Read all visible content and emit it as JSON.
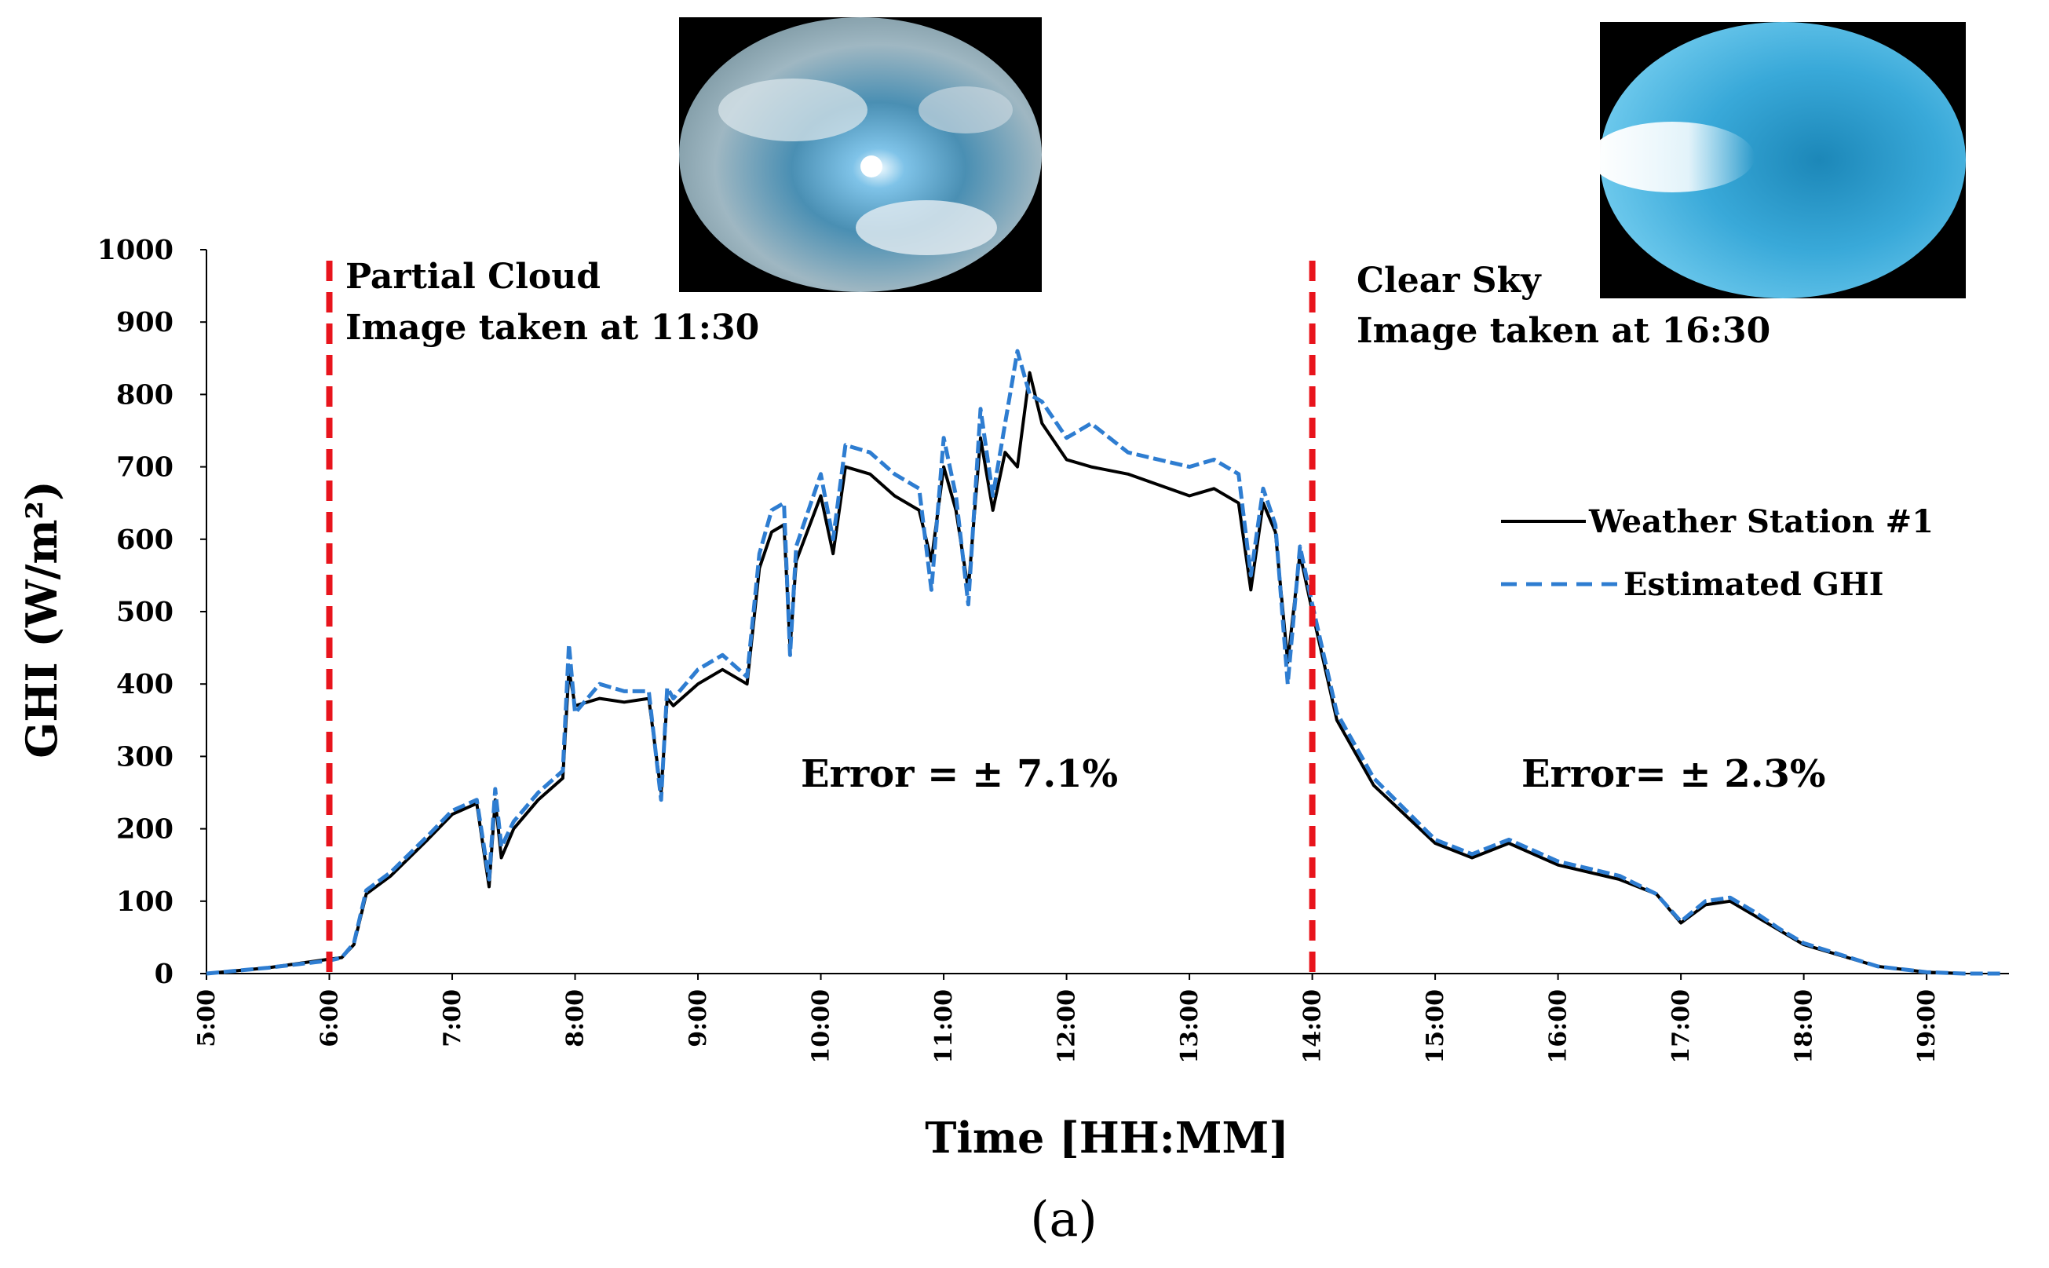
{
  "chart_data": {
    "type": "line",
    "ylabel": "GHI (W/m²)",
    "xlabel": "Time [HH:MM]",
    "caption": "(a)",
    "ylim": [
      0,
      1000
    ],
    "xlim": [
      5.0,
      19.67
    ],
    "y_ticks": [
      "0",
      "100",
      "200",
      "300",
      "400",
      "500",
      "600",
      "700",
      "800",
      "900",
      "1000"
    ],
    "x_ticks": [
      "5:00",
      "6:00",
      "7:00",
      "8:00",
      "9:00",
      "10:00",
      "11:00",
      "12:00",
      "13:00",
      "14:00",
      "15:00",
      "16:00",
      "17:00",
      "18:00",
      "19:00"
    ],
    "grid": false,
    "legend_position": "right",
    "series": [
      {
        "name": "Weather Station #1",
        "color": "#000000",
        "style": "solid",
        "x": [
          5.0,
          5.5,
          6.0,
          6.1,
          6.2,
          6.3,
          6.5,
          6.8,
          7.0,
          7.2,
          7.3,
          7.35,
          7.4,
          7.5,
          7.7,
          7.9,
          7.95,
          8.0,
          8.2,
          8.4,
          8.6,
          8.7,
          8.75,
          8.8,
          9.0,
          9.2,
          9.4,
          9.5,
          9.6,
          9.7,
          9.75,
          9.8,
          10.0,
          10.1,
          10.2,
          10.4,
          10.6,
          10.8,
          10.9,
          11.0,
          11.1,
          11.2,
          11.3,
          11.4,
          11.5,
          11.6,
          11.7,
          11.8,
          12.0,
          12.2,
          12.5,
          13.0,
          13.2,
          13.4,
          13.5,
          13.6,
          13.7,
          13.8,
          13.9,
          14.0,
          14.2,
          14.5,
          15.0,
          15.3,
          15.6,
          16.0,
          16.5,
          16.8,
          17.0,
          17.2,
          17.4,
          17.6,
          17.8,
          18.0,
          18.3,
          18.6,
          19.0,
          19.3
        ],
        "y": [
          0,
          8,
          20,
          22,
          40,
          110,
          135,
          185,
          220,
          235,
          120,
          240,
          160,
          200,
          240,
          270,
          420,
          370,
          380,
          375,
          380,
          250,
          380,
          370,
          400,
          420,
          400,
          560,
          610,
          620,
          450,
          570,
          660,
          580,
          700,
          690,
          660,
          640,
          570,
          700,
          640,
          530,
          740,
          640,
          720,
          700,
          830,
          760,
          710,
          700,
          690,
          660,
          670,
          650,
          530,
          650,
          610,
          430,
          580,
          500,
          350,
          260,
          180,
          160,
          180,
          150,
          130,
          110,
          70,
          95,
          100,
          80,
          60,
          40,
          25,
          10,
          2,
          0
        ]
      },
      {
        "name": "Estimated GHI",
        "color": "#2e7dd1",
        "style": "dashed",
        "x": [
          5.0,
          5.5,
          6.0,
          6.1,
          6.2,
          6.3,
          6.5,
          6.8,
          7.0,
          7.2,
          7.3,
          7.35,
          7.4,
          7.5,
          7.7,
          7.9,
          7.95,
          8.0,
          8.2,
          8.4,
          8.6,
          8.7,
          8.75,
          8.8,
          9.0,
          9.2,
          9.4,
          9.5,
          9.6,
          9.7,
          9.75,
          9.8,
          10.0,
          10.1,
          10.2,
          10.4,
          10.6,
          10.8,
          10.9,
          11.0,
          11.1,
          11.2,
          11.3,
          11.4,
          11.5,
          11.6,
          11.7,
          11.8,
          12.0,
          12.2,
          12.5,
          13.0,
          13.2,
          13.4,
          13.5,
          13.6,
          13.7,
          13.8,
          13.9,
          14.0,
          14.2,
          14.5,
          15.0,
          15.3,
          15.6,
          16.0,
          16.5,
          16.8,
          17.0,
          17.2,
          17.4,
          17.6,
          17.8,
          18.0,
          18.3,
          18.6,
          19.0,
          19.3,
          19.6
        ],
        "y": [
          0,
          8,
          18,
          22,
          42,
          115,
          140,
          190,
          225,
          240,
          130,
          255,
          175,
          210,
          250,
          280,
          455,
          360,
          400,
          390,
          390,
          240,
          395,
          380,
          420,
          440,
          410,
          580,
          640,
          650,
          440,
          590,
          690,
          600,
          730,
          720,
          690,
          670,
          530,
          740,
          660,
          510,
          780,
          660,
          760,
          860,
          800,
          790,
          740,
          760,
          720,
          700,
          710,
          690,
          550,
          670,
          620,
          400,
          590,
          510,
          360,
          270,
          185,
          165,
          185,
          155,
          135,
          110,
          72,
          100,
          105,
          85,
          62,
          42,
          26,
          10,
          2,
          0,
          0
        ]
      }
    ],
    "vlines": [
      {
        "x": 6.0,
        "color": "#e8141c"
      },
      {
        "x": 14.0,
        "color": "#e8141c"
      }
    ],
    "annotations": {
      "partial_title": "Partial Cloud",
      "partial_time": "Image taken at 11:30",
      "clear_title": "Clear Sky",
      "clear_time": "Image taken at 16:30",
      "error_left": "Error = ± 7.1%",
      "error_right": "Error= ± 2.3%"
    }
  }
}
